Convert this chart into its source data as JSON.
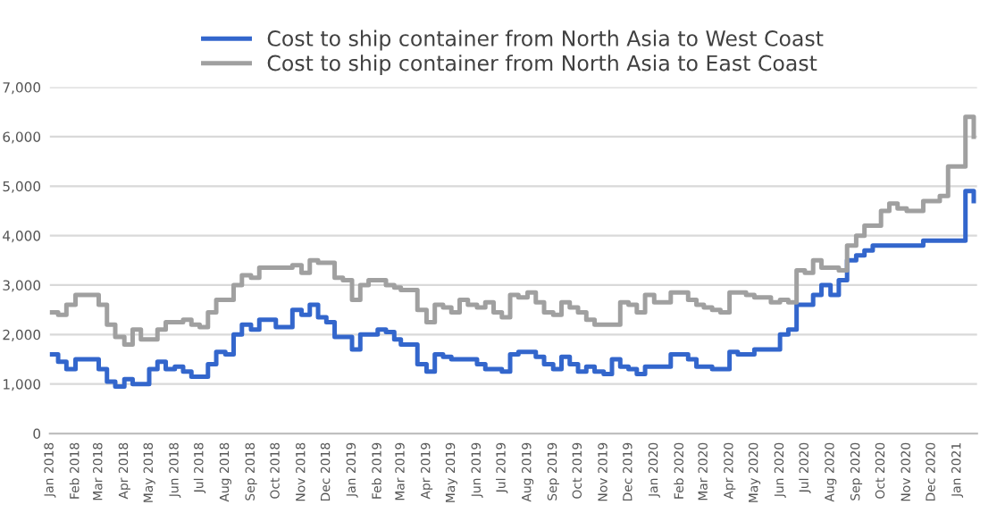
{
  "chart_data": {
    "type": "step",
    "x": [
      "2018-01-01",
      "2018-01-11",
      "2018-01-21",
      "2018-02-01",
      "2018-02-11",
      "2018-02-21",
      "2018-03-01",
      "2018-03-11",
      "2018-03-21",
      "2018-04-01",
      "2018-04-11",
      "2018-04-21",
      "2018-05-01",
      "2018-05-11",
      "2018-05-21",
      "2018-06-01",
      "2018-06-11",
      "2018-06-21",
      "2018-07-01",
      "2018-07-11",
      "2018-07-21",
      "2018-08-01",
      "2018-08-11",
      "2018-08-21",
      "2018-09-01",
      "2018-09-11",
      "2018-09-21",
      "2018-10-01",
      "2018-10-11",
      "2018-10-21",
      "2018-11-01",
      "2018-11-11",
      "2018-11-21",
      "2018-12-01",
      "2018-12-11",
      "2018-12-21",
      "2019-01-01",
      "2019-01-11",
      "2019-01-21",
      "2019-02-01",
      "2019-02-11",
      "2019-02-21",
      "2019-03-01",
      "2019-03-11",
      "2019-03-21",
      "2019-04-01",
      "2019-04-11",
      "2019-04-21",
      "2019-05-01",
      "2019-05-11",
      "2019-05-21",
      "2019-06-01",
      "2019-06-11",
      "2019-06-21",
      "2019-07-01",
      "2019-07-11",
      "2019-07-21",
      "2019-08-01",
      "2019-08-11",
      "2019-08-21",
      "2019-09-01",
      "2019-09-11",
      "2019-09-21",
      "2019-10-01",
      "2019-10-11",
      "2019-10-21",
      "2019-11-01",
      "2019-11-11",
      "2019-11-21",
      "2019-12-01",
      "2019-12-11",
      "2019-12-21",
      "2020-01-01",
      "2020-01-11",
      "2020-01-21",
      "2020-02-01",
      "2020-02-11",
      "2020-02-21",
      "2020-03-01",
      "2020-03-11",
      "2020-03-21",
      "2020-04-01",
      "2020-04-11",
      "2020-04-21",
      "2020-05-01",
      "2020-05-11",
      "2020-05-21",
      "2020-06-01",
      "2020-06-11",
      "2020-06-21",
      "2020-07-01",
      "2020-07-11",
      "2020-07-21",
      "2020-08-01",
      "2020-08-11",
      "2020-08-21",
      "2020-09-01",
      "2020-09-11",
      "2020-09-21",
      "2020-10-01",
      "2020-10-11",
      "2020-10-21",
      "2020-11-01",
      "2020-11-11",
      "2020-11-21",
      "2020-12-01",
      "2020-12-11",
      "2020-12-21",
      "2021-01-01",
      "2021-01-11",
      "2021-01-21"
    ],
    "series": [
      {
        "name": "Cost to ship container from North Asia to West Coast",
        "color": "#3366cc",
        "values": [
          1600,
          1450,
          1300,
          1500,
          1500,
          1500,
          1300,
          1050,
          950,
          1100,
          1000,
          1000,
          1300,
          1450,
          1300,
          1350,
          1250,
          1150,
          1150,
          1400,
          1650,
          1600,
          2000,
          2200,
          2100,
          2300,
          2300,
          2150,
          2150,
          2500,
          2400,
          2600,
          2350,
          2250,
          1950,
          1950,
          1700,
          2000,
          2000,
          2100,
          2050,
          1900,
          1800,
          1800,
          1400,
          1250,
          1600,
          1550,
          1500,
          1500,
          1500,
          1400,
          1300,
          1300,
          1250,
          1600,
          1650,
          1650,
          1550,
          1400,
          1300,
          1550,
          1400,
          1250,
          1350,
          1250,
          1200,
          1500,
          1350,
          1300,
          1200,
          1350,
          1350,
          1350,
          1600,
          1600,
          1500,
          1350,
          1350,
          1300,
          1300,
          1650,
          1600,
          1600,
          1700,
          1700,
          1700,
          2000,
          2100,
          2600,
          2600,
          2800,
          3000,
          2800,
          3100,
          3500,
          3600,
          3700,
          3800,
          3800,
          3800,
          3800,
          3800,
          3800,
          3900,
          3900,
          3900,
          3900,
          3900,
          4900,
          4700
        ]
      },
      {
        "name": "Cost to ship container from North Asia to East Coast",
        "color": "#a0a0a0",
        "values": [
          2450,
          2400,
          2600,
          2800,
          2800,
          2800,
          2600,
          2200,
          1950,
          1800,
          2100,
          1900,
          1900,
          2100,
          2250,
          2250,
          2300,
          2200,
          2150,
          2450,
          2700,
          2700,
          3000,
          3200,
          3150,
          3350,
          3350,
          3350,
          3350,
          3400,
          3250,
          3500,
          3450,
          3450,
          3150,
          3100,
          2700,
          3000,
          3100,
          3100,
          3000,
          2950,
          2900,
          2900,
          2500,
          2250,
          2600,
          2550,
          2450,
          2700,
          2600,
          2550,
          2650,
          2450,
          2350,
          2800,
          2750,
          2850,
          2650,
          2450,
          2400,
          2650,
          2550,
          2450,
          2300,
          2200,
          2200,
          2200,
          2650,
          2600,
          2450,
          2800,
          2650,
          2650,
          2850,
          2850,
          2700,
          2600,
          2550,
          2500,
          2450,
          2850,
          2850,
          2800,
          2750,
          2750,
          2650,
          2700,
          2650,
          3300,
          3250,
          3500,
          3350,
          3350,
          3300,
          3800,
          4000,
          4200,
          4200,
          4500,
          4650,
          4550,
          4500,
          4500,
          4700,
          4700,
          4800,
          5400,
          5400,
          6400,
          6000
        ]
      }
    ],
    "xlim": [
      "2018-01-01",
      "2021-01-25"
    ],
    "xticks": [
      {
        "value": "2018-01-01",
        "label": "Jan 2018"
      },
      {
        "value": "2018-02-01",
        "label": "Feb 2018"
      },
      {
        "value": "2018-03-01",
        "label": "Mar 2018"
      },
      {
        "value": "2018-04-01",
        "label": "Apr 2018"
      },
      {
        "value": "2018-05-01",
        "label": "May 2018"
      },
      {
        "value": "2018-06-01",
        "label": "Jun 2018"
      },
      {
        "value": "2018-07-01",
        "label": "Jul 2018"
      },
      {
        "value": "2018-08-01",
        "label": "Aug 2018"
      },
      {
        "value": "2018-09-01",
        "label": "Sep 2018"
      },
      {
        "value": "2018-10-01",
        "label": "Oct 2018"
      },
      {
        "value": "2018-11-01",
        "label": "Nov 2018"
      },
      {
        "value": "2018-12-01",
        "label": "Dec 2018"
      },
      {
        "value": "2019-01-01",
        "label": "Jan 2019"
      },
      {
        "value": "2019-02-01",
        "label": "Feb 2019"
      },
      {
        "value": "2019-03-01",
        "label": "Mar 2019"
      },
      {
        "value": "2019-04-01",
        "label": "Apr 2019"
      },
      {
        "value": "2019-05-01",
        "label": "May 2019"
      },
      {
        "value": "2019-06-01",
        "label": "Jun 2019"
      },
      {
        "value": "2019-07-01",
        "label": "Jul 2019"
      },
      {
        "value": "2019-08-01",
        "label": "Aug 2019"
      },
      {
        "value": "2019-09-01",
        "label": "Sep 2019"
      },
      {
        "value": "2019-10-01",
        "label": "Oct 2019"
      },
      {
        "value": "2019-11-01",
        "label": "Nov 2019"
      },
      {
        "value": "2019-12-01",
        "label": "Dec 2019"
      },
      {
        "value": "2020-01-01",
        "label": "Jan 2020"
      },
      {
        "value": "2020-02-01",
        "label": "Feb 2020"
      },
      {
        "value": "2020-03-01",
        "label": "Mar 2020"
      },
      {
        "value": "2020-04-01",
        "label": "Apr 2020"
      },
      {
        "value": "2020-05-01",
        "label": "May 2020"
      },
      {
        "value": "2020-06-01",
        "label": "Jun 2020"
      },
      {
        "value": "2020-07-01",
        "label": "Jul 2020"
      },
      {
        "value": "2020-08-01",
        "label": "Aug 2020"
      },
      {
        "value": "2020-09-01",
        "label": "Sep 2020"
      },
      {
        "value": "2020-10-01",
        "label": "Oct 2020"
      },
      {
        "value": "2020-11-01",
        "label": "Nov 2020"
      },
      {
        "value": "2020-12-01",
        "label": "Dec 2020"
      },
      {
        "value": "2021-01-01",
        "label": "Jan 2021"
      }
    ],
    "ylim": [
      0,
      7000
    ],
    "yticks": [
      {
        "value": 0,
        "label": "0"
      },
      {
        "value": 1000,
        "label": "1,000"
      },
      {
        "value": 2000,
        "label": "2,000"
      },
      {
        "value": 3000,
        "label": "3,000"
      },
      {
        "value": 4000,
        "label": "4,000"
      },
      {
        "value": 5000,
        "label": "5,000"
      },
      {
        "value": 6000,
        "label": "6,000"
      },
      {
        "value": 7000,
        "label": "7,000"
      }
    ],
    "grid": "y",
    "legend": "top"
  }
}
